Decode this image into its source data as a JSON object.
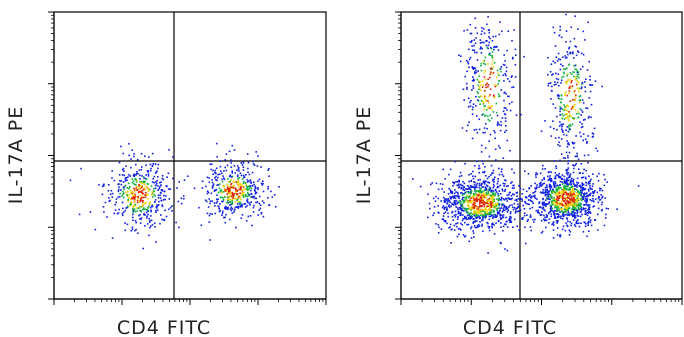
{
  "chart_data": [
    {
      "type": "scatter",
      "title": "",
      "xlabel": "CD4 FITC",
      "ylabel": "IL-17A PE",
      "xscale": "log",
      "yscale": "log",
      "grid": false,
      "quadrant_gates": true,
      "colormap": "density (blue-green-yellow-red)",
      "populations": [
        {
          "quadrant": "lower-left",
          "fraction": 0.5
        },
        {
          "quadrant": "lower-right",
          "fraction": 0.5
        }
      ]
    },
    {
      "type": "scatter",
      "title": "",
      "xlabel": "CD4 FITC",
      "ylabel": "IL-17A PE",
      "xscale": "log",
      "yscale": "log",
      "grid": false,
      "quadrant_gates": true,
      "colormap": "density (blue-green-yellow-red)",
      "populations": [
        {
          "quadrant": "lower-left",
          "fraction": 0.38
        },
        {
          "quadrant": "lower-right",
          "fraction": 0.36
        },
        {
          "quadrant": "upper-left",
          "fraction": 0.13
        },
        {
          "quadrant": "upper-right",
          "fraction": 0.13
        }
      ]
    }
  ],
  "colors": {
    "axis": "#000000",
    "low_density": "#1020e0",
    "mid_density": "#10b040",
    "high_density": "#f0d000",
    "peak_density": "#e02000"
  }
}
